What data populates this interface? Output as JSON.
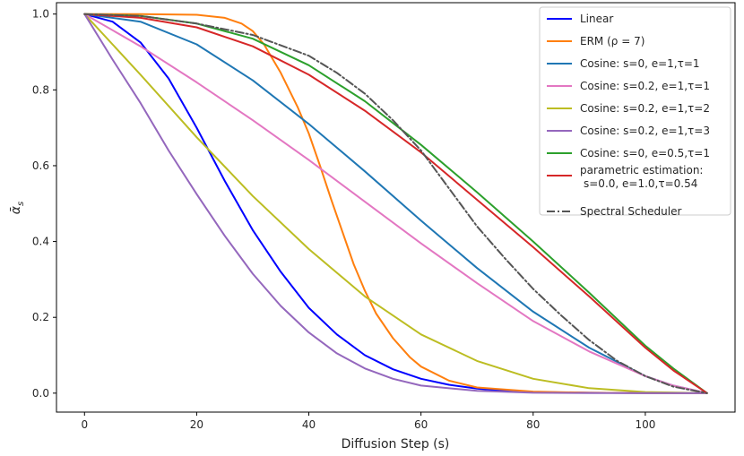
{
  "chart_data": {
    "type": "line",
    "title": "",
    "xlabel": "Diffusion Step (s)",
    "ylabel": "ᾱ",
    "ylabel_sub": "s",
    "xlim": [
      -5,
      116
    ],
    "ylim": [
      -0.05,
      1.03
    ],
    "xticks": [
      0,
      20,
      40,
      60,
      80,
      100
    ],
    "yticks": [
      0.0,
      0.2,
      0.4,
      0.6,
      0.8,
      1.0
    ],
    "xtick_labels": [
      "0",
      "20",
      "40",
      "60",
      "80",
      "100"
    ],
    "ytick_labels": [
      "0.0",
      "0.2",
      "0.4",
      "0.6",
      "0.8",
      "1.0"
    ],
    "grid": false,
    "legend_position": "top-right",
    "series": [
      {
        "name": "Linear",
        "legend_label": "Linear",
        "color": "#0000ff",
        "dash": "solid",
        "x": [
          0,
          5,
          10,
          15,
          20,
          25,
          30,
          35,
          40,
          45,
          50,
          55,
          60,
          65,
          70,
          75,
          80,
          90,
          100,
          111
        ],
        "y": [
          1.0,
          0.98,
          0.925,
          0.83,
          0.7,
          0.56,
          0.43,
          0.32,
          0.225,
          0.155,
          0.1,
          0.063,
          0.038,
          0.022,
          0.012,
          0.006,
          0.003,
          0.001,
          0.0,
          0.0
        ]
      },
      {
        "name": "ERM (ρ = 7)",
        "legend_label": "ERM (ρ = 7)",
        "color": "#ff7f0e",
        "dash": "solid",
        "x": [
          0,
          10,
          20,
          25,
          28,
          30,
          32,
          35,
          38,
          40,
          42,
          44,
          46,
          48,
          50,
          52,
          55,
          58,
          60,
          65,
          70,
          80,
          90,
          100,
          111
        ],
        "y": [
          1.0,
          1.0,
          0.998,
          0.99,
          0.975,
          0.955,
          0.92,
          0.845,
          0.755,
          0.685,
          0.6,
          0.51,
          0.425,
          0.34,
          0.27,
          0.21,
          0.145,
          0.095,
          0.07,
          0.033,
          0.015,
          0.004,
          0.001,
          0.0,
          0.0
        ]
      },
      {
        "name": "Cosine: s=0, e=1,τ=1",
        "legend_label": "Cosine: s=0, e=1,τ=1",
        "color": "#1f77b4",
        "dash": "solid",
        "x": [
          0,
          10,
          20,
          30,
          40,
          50,
          60,
          70,
          80,
          90,
          100,
          105,
          111
        ],
        "y": [
          1.0,
          0.98,
          0.92,
          0.825,
          0.71,
          0.585,
          0.455,
          0.33,
          0.215,
          0.12,
          0.045,
          0.02,
          0.0
        ]
      },
      {
        "name": "Cosine: s=0.2, e=1,τ=1",
        "legend_label": "Cosine: s=0.2, e=1,τ=1",
        "color": "#e377c2",
        "dash": "solid",
        "x": [
          0,
          10,
          20,
          30,
          40,
          50,
          60,
          70,
          80,
          90,
          100,
          105,
          111
        ],
        "y": [
          1.0,
          0.915,
          0.82,
          0.72,
          0.615,
          0.505,
          0.395,
          0.29,
          0.19,
          0.11,
          0.045,
          0.02,
          0.0
        ]
      },
      {
        "name": "Cosine: s=0.2, e=1,τ=2",
        "legend_label": "Cosine: s=0.2, e=1,τ=2",
        "color": "#bcbd22",
        "dash": "solid",
        "x": [
          0,
          10,
          20,
          30,
          40,
          50,
          60,
          70,
          80,
          90,
          100,
          111
        ],
        "y": [
          1.0,
          0.84,
          0.675,
          0.52,
          0.38,
          0.255,
          0.155,
          0.085,
          0.038,
          0.013,
          0.003,
          0.0
        ]
      },
      {
        "name": "Cosine: s=0.2, e=1,τ=3",
        "legend_label": "Cosine: s=0.2, e=1,τ=3",
        "color": "#9467bd",
        "dash": "solid",
        "x": [
          0,
          5,
          10,
          15,
          20,
          25,
          30,
          35,
          40,
          45,
          50,
          55,
          60,
          70,
          80,
          90,
          100,
          111
        ],
        "y": [
          1.0,
          0.88,
          0.765,
          0.64,
          0.525,
          0.415,
          0.315,
          0.23,
          0.16,
          0.105,
          0.065,
          0.038,
          0.02,
          0.006,
          0.001,
          0.0,
          0.0,
          0.0
        ]
      },
      {
        "name": "Cosine: s=0, e=0.5,τ=1",
        "legend_label": "Cosine: s=0, e=0.5,τ=1",
        "color": "#2ca02c",
        "dash": "solid",
        "x": [
          0,
          10,
          20,
          30,
          40,
          50,
          60,
          70,
          80,
          90,
          100,
          105,
          111
        ],
        "y": [
          1.0,
          0.995,
          0.975,
          0.935,
          0.865,
          0.77,
          0.655,
          0.53,
          0.4,
          0.265,
          0.125,
          0.065,
          0.0
        ]
      },
      {
        "name": "parametric estimation: s=0.0, e=1.0,τ=0.54",
        "legend_label": "parametric estimation:",
        "legend_label_2": "s=0.0, e=1.0,τ=0.54",
        "color": "#d62728",
        "dash": "solid",
        "x": [
          0,
          10,
          20,
          30,
          40,
          50,
          60,
          70,
          80,
          90,
          100,
          105,
          111
        ],
        "y": [
          1.0,
          0.99,
          0.965,
          0.915,
          0.84,
          0.745,
          0.635,
          0.51,
          0.385,
          0.255,
          0.12,
          0.06,
          0.0
        ]
      },
      {
        "name": "Spectral Scheduler",
        "legend_label": "Spectral Scheduler",
        "color": "#555555",
        "dash": "dashdot",
        "x": [
          0,
          10,
          20,
          30,
          40,
          45,
          50,
          55,
          60,
          65,
          70,
          75,
          80,
          85,
          90,
          95,
          100,
          105,
          111
        ],
        "y": [
          1.0,
          0.995,
          0.975,
          0.945,
          0.89,
          0.845,
          0.79,
          0.72,
          0.64,
          0.54,
          0.44,
          0.355,
          0.275,
          0.205,
          0.14,
          0.085,
          0.045,
          0.017,
          0.0
        ]
      }
    ]
  }
}
